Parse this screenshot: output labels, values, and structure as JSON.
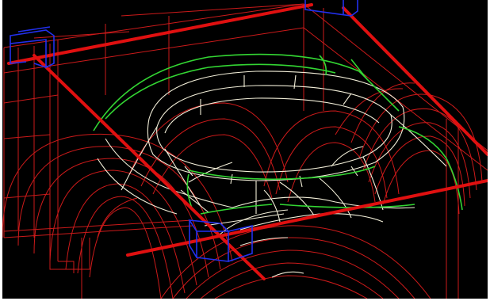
{
  "viewport": {
    "title": "",
    "background": "#000000"
  },
  "palette": {
    "construction_lines": "#cc1a1a",
    "thick_axes": "#e01010",
    "dome_edges": "#f2eed8",
    "rib_edges": "#33d633",
    "support_blocks": "#2230ee"
  },
  "layers": [
    {
      "name": "construction-lines",
      "color_ref": "construction_lines"
    },
    {
      "name": "axis-lines",
      "color_ref": "thick_axes"
    },
    {
      "name": "dome-wireframe",
      "color_ref": "dome_edges"
    },
    {
      "name": "pendentive-ribs",
      "color_ref": "rib_edges"
    },
    {
      "name": "support-blocks",
      "color_ref": "support_blocks"
    }
  ]
}
